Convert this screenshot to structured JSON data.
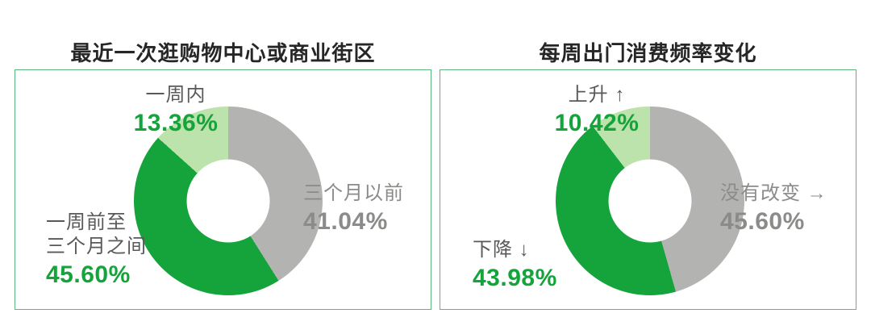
{
  "colors": {
    "background": "#ffffff",
    "title": "#262626",
    "card_border": "#5bb97e",
    "green": "#14a43b",
    "light_green": "#bce3ab",
    "gray": "#b3b3b1",
    "label_dark": "#58595b",
    "label_gray": "#8b8b89"
  },
  "charts": [
    {
      "title": "最近一次逛购物中心或商业街区",
      "callouts": [
        {
          "label": "一周内",
          "value": "13.36%",
          "tone": "green"
        },
        {
          "label": "三个月以前",
          "value": "41.04%",
          "tone": "gray"
        },
        {
          "label": "一周前至\n三个月之间",
          "value": "45.60%",
          "tone": "green"
        }
      ]
    },
    {
      "title": "每周出门消费频率变化",
      "callouts": [
        {
          "label": "上升 ↑",
          "value": "10.42%",
          "tone": "green"
        },
        {
          "label": "没有改变 →",
          "value": "45.60%",
          "tone": "gray"
        },
        {
          "label": "下降 ↓",
          "value": "43.98%",
          "tone": "green"
        }
      ]
    }
  ],
  "chart_data": [
    {
      "type": "pie",
      "subtype": "donut",
      "title": "最近一次逛购物中心或商业街区",
      "labels": [
        "三个月以前",
        "一周前至三个月之间",
        "一周内"
      ],
      "values": [
        41.04,
        45.6,
        13.36
      ],
      "unit": "%",
      "colors": [
        "#b3b3b1",
        "#14a43b",
        "#bce3ab"
      ],
      "start_angle": "12-oclock",
      "direction": "clockwise",
      "inner_radius_ratio": 0.44,
      "legend": "none"
    },
    {
      "type": "pie",
      "subtype": "donut",
      "title": "每周出门消费频率变化",
      "labels": [
        "没有改变 →",
        "下降 ↓",
        "上升 ↑"
      ],
      "values": [
        45.6,
        43.98,
        10.42
      ],
      "unit": "%",
      "colors": [
        "#b3b3b1",
        "#14a43b",
        "#bce3ab"
      ],
      "start_angle": "12-oclock",
      "direction": "clockwise",
      "inner_radius_ratio": 0.44,
      "legend": "none"
    }
  ]
}
